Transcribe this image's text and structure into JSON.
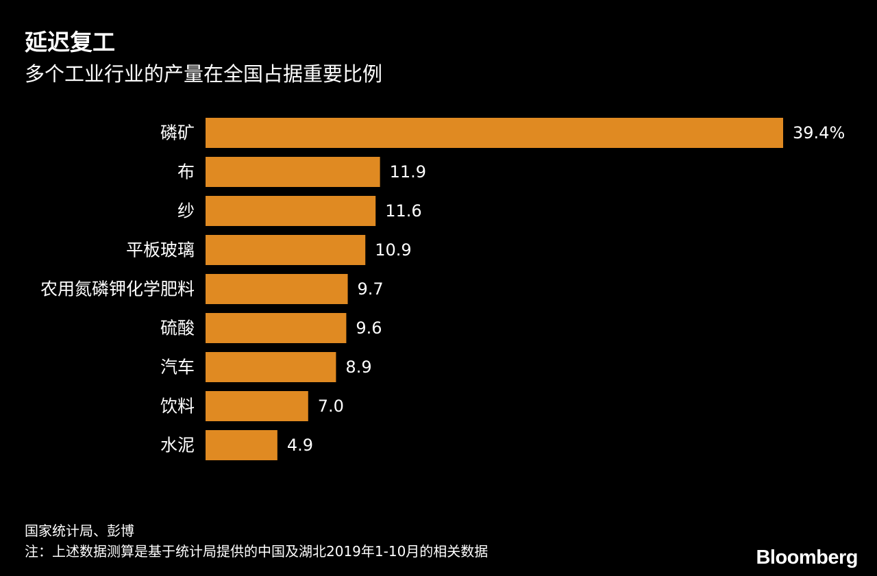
{
  "chart_data": {
    "type": "bar",
    "orientation": "horizontal",
    "title": "延迟复工",
    "subtitle": "多个工业行业的产量在全国占据重要比例",
    "categories": [
      "磷矿",
      "布",
      "纱",
      "平板玻璃",
      "农用氮磷钾化学肥料",
      "硫酸",
      "汽车",
      "饮料",
      "水泥"
    ],
    "values": [
      39.4,
      11.9,
      11.6,
      10.9,
      9.7,
      9.6,
      8.9,
      7.0,
      4.9
    ],
    "value_labels": [
      "39.4%",
      "11.9",
      "11.6",
      "10.9",
      "9.7",
      "9.6",
      "8.9",
      "7.0",
      "4.9"
    ],
    "xlim": [
      0,
      39.4
    ],
    "grid": false,
    "legend": "none",
    "bar_color": "#e08a22",
    "background": "#000000"
  },
  "footer": {
    "source": "国家统计局、彭博",
    "note": "注：上述数据测算是基于统计局提供的中国及湖北2019年1-10月的相关数据"
  },
  "brand": {
    "logo_text": "Bloomberg"
  }
}
